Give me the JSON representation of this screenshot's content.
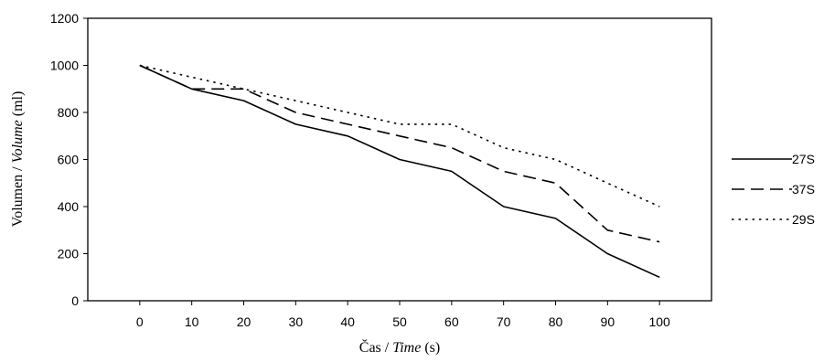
{
  "chart_data": {
    "type": "line",
    "x": [
      0,
      10,
      20,
      30,
      40,
      50,
      60,
      70,
      80,
      90,
      100
    ],
    "series": [
      {
        "name": "27S",
        "style": "solid",
        "values": [
          1000,
          900,
          850,
          750,
          700,
          600,
          550,
          400,
          350,
          200,
          100
        ]
      },
      {
        "name": "37S",
        "style": "dashed",
        "values": [
          1000,
          900,
          900,
          800,
          750,
          700,
          650,
          550,
          500,
          300,
          250
        ]
      },
      {
        "name": "29S",
        "style": "dotted",
        "values": [
          1000,
          950,
          900,
          850,
          800,
          750,
          750,
          650,
          600,
          500,
          400
        ]
      }
    ],
    "xlabel": {
      "plain": "Čas / ",
      "italic": "Time",
      "suffix": " (s)"
    },
    "ylabel": {
      "plain": "Volumen / ",
      "italic": "Volume",
      "suffix": " (ml)"
    },
    "xticks": [
      0,
      10,
      20,
      30,
      40,
      50,
      60,
      70,
      80,
      90,
      100
    ],
    "yticks": [
      0,
      200,
      400,
      600,
      800,
      1000,
      1200
    ],
    "xlim": [
      0,
      100
    ],
    "ylim": [
      0,
      1200
    ],
    "grid": false,
    "legend_position": "right",
    "line_color": "#000000"
  }
}
